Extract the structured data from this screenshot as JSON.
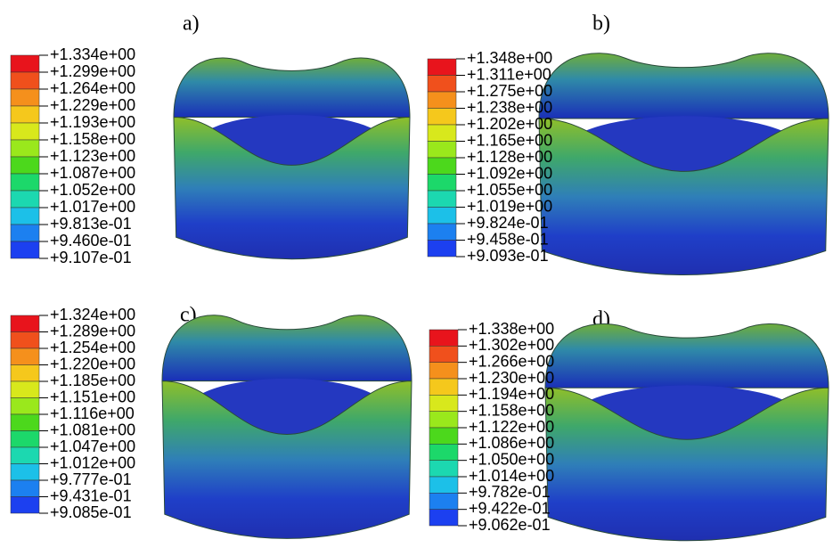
{
  "panels": [
    {
      "label": "a)",
      "legend": [
        "+1.334e+00",
        "+1.299e+00",
        "+1.264e+00",
        "+1.229e+00",
        "+1.193e+00",
        "+1.158e+00",
        "+1.123e+00",
        "+1.087e+00",
        "+1.052e+00",
        "+1.017e+00",
        "+9.813e-01",
        "+9.460e-01",
        "+9.107e-01"
      ]
    },
    {
      "label": "b)",
      "legend": [
        "+1.348e+00",
        "+1.311e+00",
        "+1.275e+00",
        "+1.238e+00",
        "+1.202e+00",
        "+1.165e+00",
        "+1.128e+00",
        "+1.092e+00",
        "+1.055e+00",
        "+1.019e+00",
        "+9.824e-01",
        "+9.458e-01",
        "+9.093e-01"
      ]
    },
    {
      "label": "c)",
      "legend": [
        "+1.324e+00",
        "+1.289e+00",
        "+1.254e+00",
        "+1.220e+00",
        "+1.185e+00",
        "+1.151e+00",
        "+1.116e+00",
        "+1.081e+00",
        "+1.047e+00",
        "+1.012e+00",
        "+9.777e-01",
        "+9.431e-01",
        "+9.085e-01"
      ]
    },
    {
      "label": "d)",
      "legend": [
        "+1.338e+00",
        "+1.302e+00",
        "+1.266e+00",
        "+1.230e+00",
        "+1.194e+00",
        "+1.158e+00",
        "+1.122e+00",
        "+1.086e+00",
        "+1.050e+00",
        "+1.014e+00",
        "+9.782e-01",
        "+9.422e-01",
        "+9.062e-01"
      ]
    }
  ]
}
